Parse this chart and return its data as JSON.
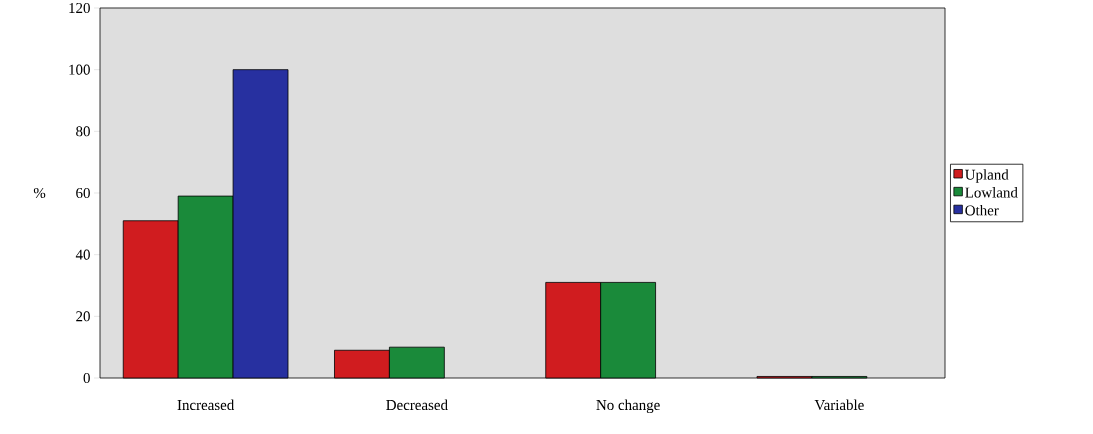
{
  "chart_data": {
    "type": "bar",
    "ylabel": "%",
    "categories": [
      "Increased",
      "Decreased",
      "No change",
      "Variable"
    ],
    "series": [
      {
        "name": "Upland",
        "color": "#d01c1f",
        "values": [
          51,
          9,
          31,
          0.5
        ]
      },
      {
        "name": "Lowland",
        "color": "#1a8a3a",
        "values": [
          59,
          10,
          31,
          0.5
        ]
      },
      {
        "name": "Other",
        "color": "#2730a0",
        "values": [
          100,
          null,
          null,
          null
        ]
      }
    ],
    "ylim": [
      0,
      120
    ],
    "yticks": [
      0,
      20,
      40,
      60,
      80,
      100,
      120
    ],
    "legend": "right"
  }
}
